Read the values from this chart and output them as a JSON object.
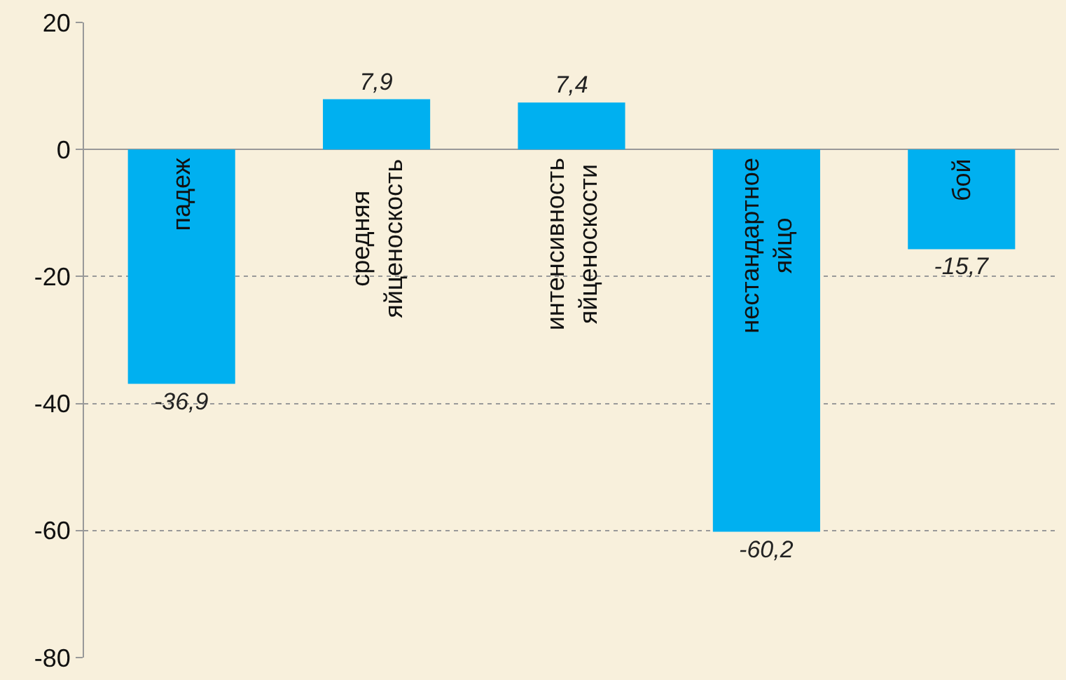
{
  "chart_data": {
    "type": "bar",
    "categories": [
      "падеж",
      "средняя яйценоскость",
      "интенсивность яйценоскости",
      "нестандартное яйцо",
      "бой"
    ],
    "values": [
      -36.9,
      7.9,
      7.4,
      -60.2,
      -15.7
    ],
    "value_labels": [
      "-36,9",
      "7,9",
      "7,4",
      "-60,2",
      "-15,7"
    ],
    "color": "#00b0f0",
    "ylim": [
      -80,
      20
    ],
    "yticks": [
      -80,
      -60,
      -40,
      -20,
      0,
      20
    ],
    "grid": "y",
    "tick_labels": "y",
    "legend": false
  }
}
